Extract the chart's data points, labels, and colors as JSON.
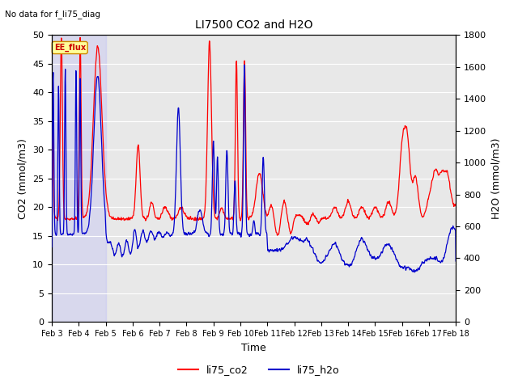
{
  "title": "LI7500 CO2 and H2O",
  "subtitle": "No data for f_li75_diag",
  "xlabel": "Time",
  "ylabel_left": "CO2 (mmol/m3)",
  "ylabel_right": "H2O (mmol/m3)",
  "ylim_left": [
    0,
    50
  ],
  "ylim_right": [
    0,
    1800
  ],
  "yticks_left": [
    0,
    5,
    10,
    15,
    20,
    25,
    30,
    35,
    40,
    45,
    50
  ],
  "yticks_right": [
    0,
    200,
    400,
    600,
    800,
    1000,
    1200,
    1400,
    1600,
    1800
  ],
  "shaded_region_label": "EE_flux",
  "co2_color": "#ff0000",
  "h2o_color": "#0000cc",
  "legend_labels": [
    "li75_co2",
    "li75_h2o"
  ],
  "background_color": "#ffffff",
  "plot_bg_color": "#e8e8e8",
  "grid_color": "#ffffff",
  "date_labels": [
    "Feb 3",
    "Feb 4",
    "Feb 5",
    "Feb 6",
    "Feb 7",
    "Feb 8",
    "Feb 9",
    "Feb 10",
    "Feb 11",
    "Feb 12",
    "Feb 13",
    "Feb 14",
    "Feb 15",
    "Feb 16",
    "Feb 17",
    "Feb 18"
  ],
  "fontsize": 9
}
